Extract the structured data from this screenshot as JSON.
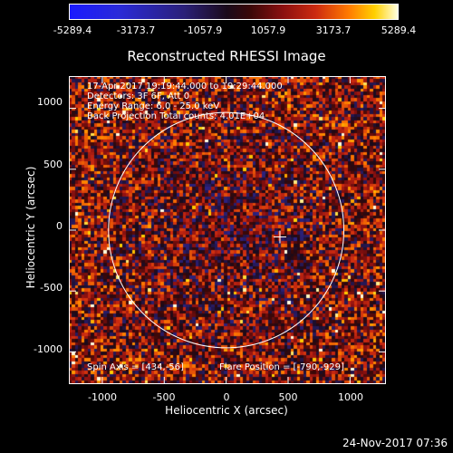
{
  "chart_data": {
    "type": "heatmap",
    "title": "Reconstructed RHESSI Image",
    "xlabel": "Heliocentric X (arcsec)",
    "ylabel": "Heliocentric Y (arcsec)",
    "xlim": [
      -1270,
      1290
    ],
    "ylim": [
      -1265,
      1265
    ],
    "x_ticks": [
      "-1000",
      "-500",
      "0",
      "500",
      "1000"
    ],
    "y_ticks": [
      "1000",
      "500",
      "0",
      "-500",
      "-1000"
    ],
    "colorbar": {
      "min": -5289.4,
      "max": 5289.4,
      "tick_labels": [
        "-5289.4",
        "-3173.7",
        "-1057.9",
        "1057.9",
        "3173.7",
        "5289.4"
      ]
    },
    "annotations": {
      "time_range": "17-Apr-2017 19:19:44.000 to 19:29:44.000",
      "detectors": "Detectors: 3F 6F, Att 0",
      "energy": "Energy Range: 6.0 - 25.0 keV",
      "method": "Back Projection    Total counts: 4.01E+04",
      "spin_axis": "Spin Axis = [434,-56]",
      "flare_position": "Flare Position = [-790,-929]"
    },
    "solar_disk": {
      "center": [
        0,
        0
      ],
      "radius_arcsec": 950
    },
    "spin_axis_marker": [
      434,
      -56
    ]
  },
  "footer": {
    "timestamp": "24-Nov-2017 07:36"
  }
}
